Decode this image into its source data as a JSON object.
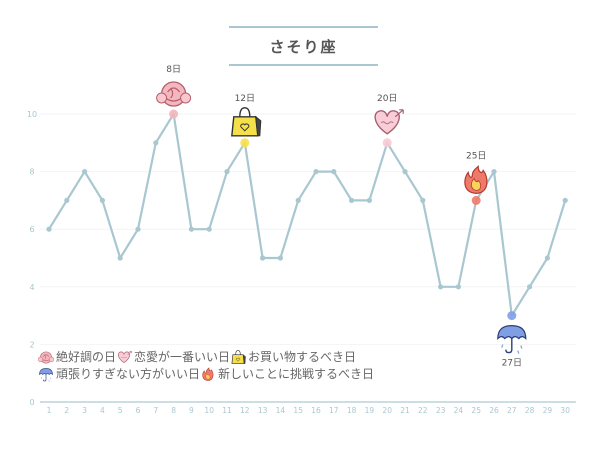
{
  "chart_data": {
    "type": "line",
    "title": "さそり座",
    "xlabel": "",
    "ylabel": "",
    "x": [
      1,
      2,
      3,
      4,
      5,
      6,
      7,
      8,
      9,
      10,
      11,
      12,
      13,
      14,
      15,
      16,
      17,
      18,
      19,
      20,
      21,
      22,
      23,
      24,
      25,
      26,
      27,
      28,
      29,
      30
    ],
    "y": [
      6,
      7,
      8,
      7,
      5,
      6,
      9,
      10,
      6,
      6,
      8,
      9,
      5,
      5,
      7,
      8,
      8,
      7,
      7,
      9,
      8,
      7,
      4,
      4,
      7,
      8,
      3,
      4,
      5,
      7
    ],
    "ylim": [
      0,
      11
    ],
    "yticks": [
      0,
      2,
      4,
      6,
      8,
      10
    ],
    "grid": true,
    "line_color": "#a9c7d0",
    "annotations": [
      {
        "day": 8,
        "label": "8日",
        "icon": "rose-icon",
        "color": "#f2b5bd"
      },
      {
        "day": 12,
        "label": "12日",
        "icon": "shopping-bag-icon",
        "color": "#f6e04a"
      },
      {
        "day": 20,
        "label": "20日",
        "icon": "heart-icon",
        "color": "#f8c9d4"
      },
      {
        "day": 25,
        "label": "25日",
        "icon": "flame-icon",
        "color": "#f07a6a"
      },
      {
        "day": 27,
        "label": "27日",
        "icon": "umbrella-icon",
        "color": "#7f9ee3"
      }
    ],
    "legend": [
      [
        {
          "icon": "rose-icon",
          "text": "絶好調の日"
        },
        {
          "icon": "heart-icon",
          "text": "恋愛が一番いい日"
        },
        {
          "icon": "shopping-bag-icon",
          "text": "お買い物するべき日"
        }
      ],
      [
        {
          "icon": "umbrella-icon",
          "text": "頑張りすぎない方がいい日"
        },
        {
          "icon": "flame-icon",
          "text": "新しいことに挑戦するべき日"
        }
      ]
    ]
  }
}
